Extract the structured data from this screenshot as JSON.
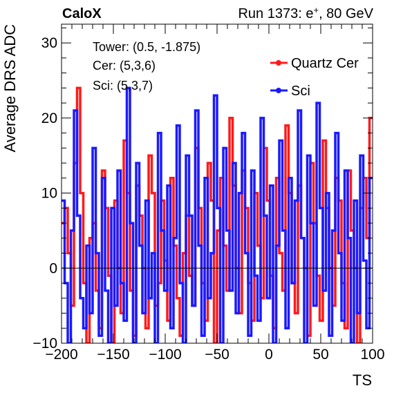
{
  "header": {
    "brand": "CaloX",
    "run_info_prefix": "Run 1373: e",
    "run_info_sup": "+",
    "run_info_suffix": ", 80 GeV"
  },
  "info_box": {
    "tower": "Tower: (0.5, -1.875)",
    "cer": "Cer: (5,3,6)",
    "sci": "Sci: (5,3,7)"
  },
  "chart_data": {
    "type": "line",
    "xlabel": "TS",
    "ylabel": "Average DRS ADC",
    "xlim": [
      -200,
      100
    ],
    "ylim": [
      -10,
      32.5
    ],
    "x_ticks": [
      -200,
      -150,
      -100,
      -50,
      0,
      50,
      100
    ],
    "x_tick_labels": [
      "−200",
      "−150",
      "−100",
      "−50",
      "0",
      "50",
      "100"
    ],
    "y_ticks": [
      -10,
      0,
      10,
      20,
      30
    ],
    "y_tick_labels": [
      "−10",
      "0",
      "10",
      "20",
      "30"
    ],
    "step": true,
    "legend_position": "top-right",
    "series": [
      {
        "name": "Quartz Cer",
        "color": "#ff1a1a",
        "x": [
          -200,
          -197,
          -194,
          -191,
          -188,
          -185,
          -182,
          -179,
          -176,
          -173,
          -170,
          -167,
          -164,
          -161,
          -158,
          -155,
          -152,
          -149,
          -146,
          -143,
          -140,
          -137,
          -134,
          -131,
          -128,
          -125,
          -122,
          -119,
          -116,
          -113,
          -110,
          -107,
          -104,
          -101,
          -98,
          -95,
          -92,
          -89,
          -86,
          -83,
          -80,
          -77,
          -74,
          -71,
          -68,
          -65,
          -62,
          -59,
          -56,
          -53,
          -50,
          -47,
          -44,
          -41,
          -38,
          -35,
          -32,
          -29,
          -26,
          -23,
          -20,
          -17,
          -14,
          -11,
          -8,
          -5,
          -2,
          1,
          4,
          7,
          10,
          13,
          16,
          19,
          22,
          25,
          28,
          31,
          34,
          37,
          40,
          43,
          46,
          49,
          52,
          55,
          58,
          61,
          64,
          67,
          70,
          73,
          76,
          79,
          82,
          85,
          88,
          91,
          94,
          97
        ],
        "values": [
          6,
          8,
          2,
          -5,
          14,
          24,
          10,
          -2,
          -10,
          4,
          6,
          -3,
          -8,
          13,
          8,
          -1,
          -10,
          9,
          0,
          -6,
          17,
          10,
          -3,
          -9,
          11,
          7,
          0,
          -8,
          15,
          10,
          -5,
          -2,
          9,
          1,
          -7,
          12,
          3,
          -4,
          -9,
          2,
          7,
          -1,
          -5,
          16,
          8,
          -2,
          -7,
          14,
          9,
          -10,
          5,
          12,
          3,
          -3,
          20,
          11,
          0,
          -6,
          13,
          8,
          -2,
          -7,
          10,
          3,
          -4,
          16,
          9,
          -1,
          -8,
          12,
          2,
          -3,
          19,
          10,
          -2,
          -6,
          11,
          4,
          0,
          -9,
          14,
          6,
          -1,
          -7,
          17,
          8,
          0,
          -5,
          12,
          9,
          -2,
          -8,
          13,
          5,
          0,
          -10,
          8,
          12,
          4,
          20
        ]
      },
      {
        "name": "Sci",
        "color": "#1a1aff",
        "x": [
          -200,
          -197,
          -194,
          -191,
          -188,
          -185,
          -182,
          -179,
          -176,
          -173,
          -170,
          -167,
          -164,
          -161,
          -158,
          -155,
          -152,
          -149,
          -146,
          -143,
          -140,
          -137,
          -134,
          -131,
          -128,
          -125,
          -122,
          -119,
          -116,
          -113,
          -110,
          -107,
          -104,
          -101,
          -98,
          -95,
          -92,
          -89,
          -86,
          -83,
          -80,
          -77,
          -74,
          -71,
          -68,
          -65,
          -62,
          -59,
          -56,
          -53,
          -50,
          -47,
          -44,
          -41,
          -38,
          -35,
          -32,
          -29,
          -26,
          -23,
          -20,
          -17,
          -14,
          -11,
          -8,
          -5,
          -2,
          1,
          4,
          7,
          10,
          13,
          16,
          19,
          22,
          25,
          28,
          31,
          34,
          37,
          40,
          43,
          46,
          49,
          52,
          55,
          58,
          61,
          64,
          67,
          70,
          73,
          76,
          79,
          82,
          85,
          88,
          91,
          94,
          97
        ],
        "values": [
          9,
          -2,
          -10,
          5,
          21,
          7,
          -4,
          -8,
          3,
          -6,
          16,
          2,
          -9,
          12,
          -3,
          -10,
          8,
          -5,
          13,
          -2,
          -7,
          24,
          6,
          -10,
          14,
          3,
          -6,
          9,
          -4,
          2,
          -10,
          18,
          5,
          -3,
          11,
          -8,
          4,
          19,
          -2,
          -10,
          15,
          7,
          -5,
          21,
          3,
          -9,
          12,
          -4,
          2,
          23,
          8,
          -10,
          16,
          5,
          -3,
          14,
          -6,
          10,
          18,
          2,
          -9,
          13,
          -1,
          -7,
          20,
          7,
          -4,
          11,
          -10,
          3,
          17,
          5,
          -8,
          12,
          -2,
          9,
          21,
          4,
          -10,
          15,
          6,
          -5,
          22,
          8,
          -3,
          10,
          -9,
          5,
          18,
          2,
          -7,
          13,
          4,
          -10,
          9,
          -6,
          15,
          1,
          -8,
          12
        ]
      }
    ]
  }
}
